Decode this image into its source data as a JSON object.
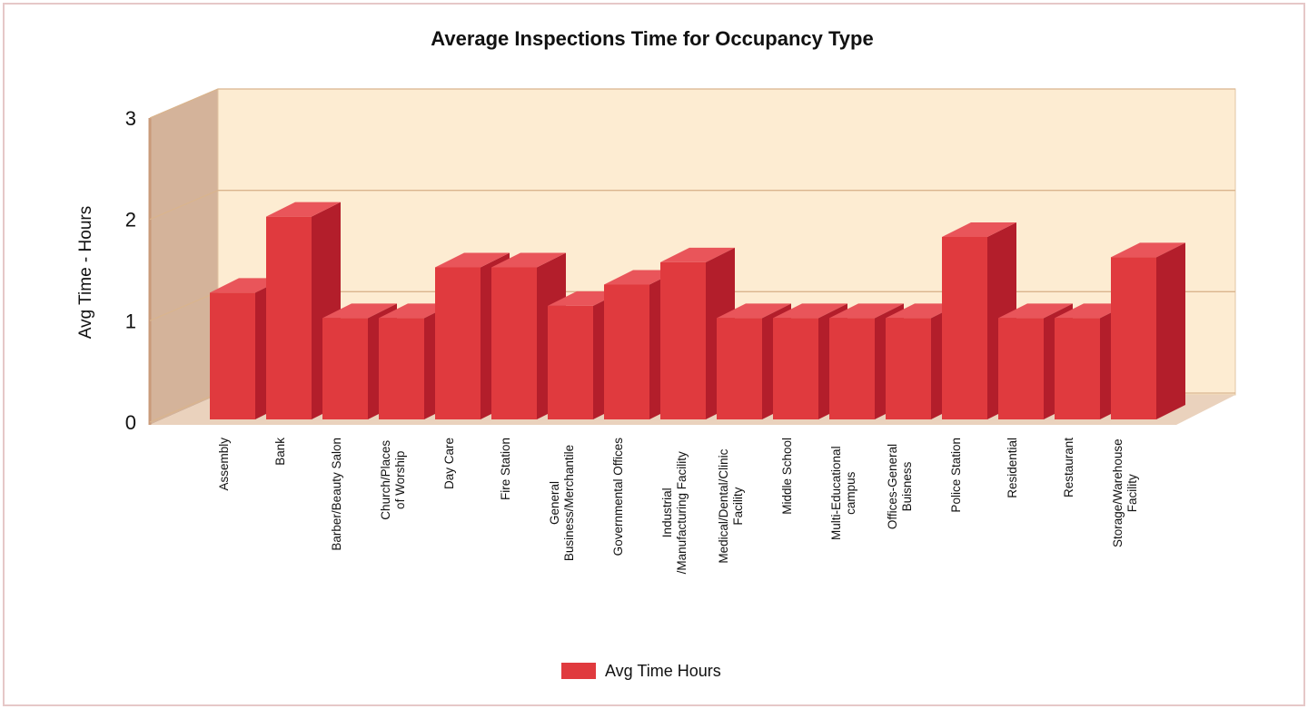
{
  "chart_data": {
    "type": "bar3d",
    "title": "Average Inspections Time for Occupancy Type",
    "y_label": "Avg Time - Hours",
    "categories": [
      "Assembly",
      "Bank",
      "Barber/Beauty Salon",
      "Church/Places\nof Worship",
      "Day Care",
      "Fire Station",
      "General\nBusiness/Merchantile",
      "Governmental Offices",
      "Industrial\n/Manufacturing Facility",
      "Medical/Dental/Clinic\nFacility",
      "Middle School",
      "Multi-Educational\ncampus",
      "Offices-General\nBuisness",
      "Police Station",
      "Residential",
      "Restaurant",
      "Storage/Warehouse\nFacility"
    ],
    "series": [
      {
        "name": "Avg Time Hours",
        "color": "#e03a3e",
        "values": [
          1.25,
          2,
          1,
          1,
          1.5,
          1.5,
          1.12,
          1.33,
          1.55,
          1,
          1,
          1,
          1,
          1.8,
          1,
          1,
          1.6
        ]
      }
    ],
    "ylim": [
      0,
      3
    ],
    "yticks": [
      0,
      1,
      2,
      3
    ],
    "grid": true,
    "legend": "bottom"
  }
}
